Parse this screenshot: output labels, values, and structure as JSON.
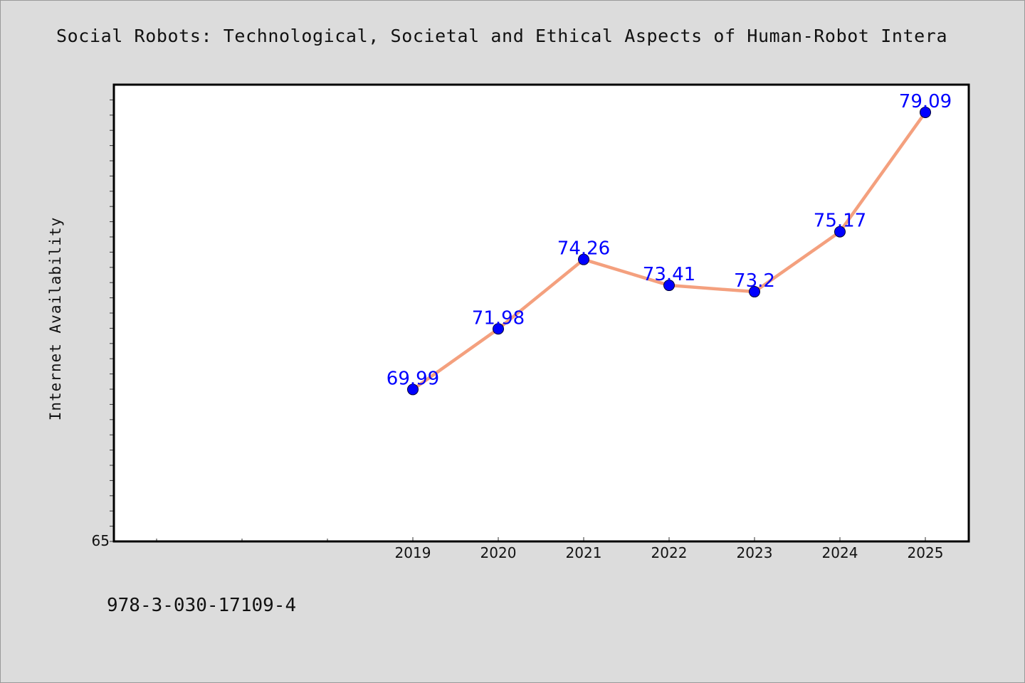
{
  "chart_data": {
    "type": "line",
    "title": "Social Robots: Technological, Societal and Ethical Aspects of Human-Robot Intera",
    "xlabel": "",
    "ylabel": "Internet Availability",
    "categories": [
      "2019",
      "2020",
      "2021",
      "2022",
      "2023",
      "2024",
      "2025"
    ],
    "series": [
      {
        "values": [
          69.99,
          71.98,
          74.26,
          73.41,
          73.2,
          75.17,
          79.09
        ]
      }
    ],
    "data_labels": [
      "69.99",
      "71.98",
      "74.26",
      "73.41",
      "73.2",
      "75.17",
      "79.09"
    ],
    "ylim": [
      65,
      80
    ],
    "y_tick_labels": [
      "65"
    ],
    "grid": false,
    "legend": "none",
    "line_color": "#f4a07e",
    "marker_color": "#0000ff",
    "data_label_color": "#0000ff"
  },
  "footer": {
    "isbn": "978-3-030-17109-4"
  }
}
